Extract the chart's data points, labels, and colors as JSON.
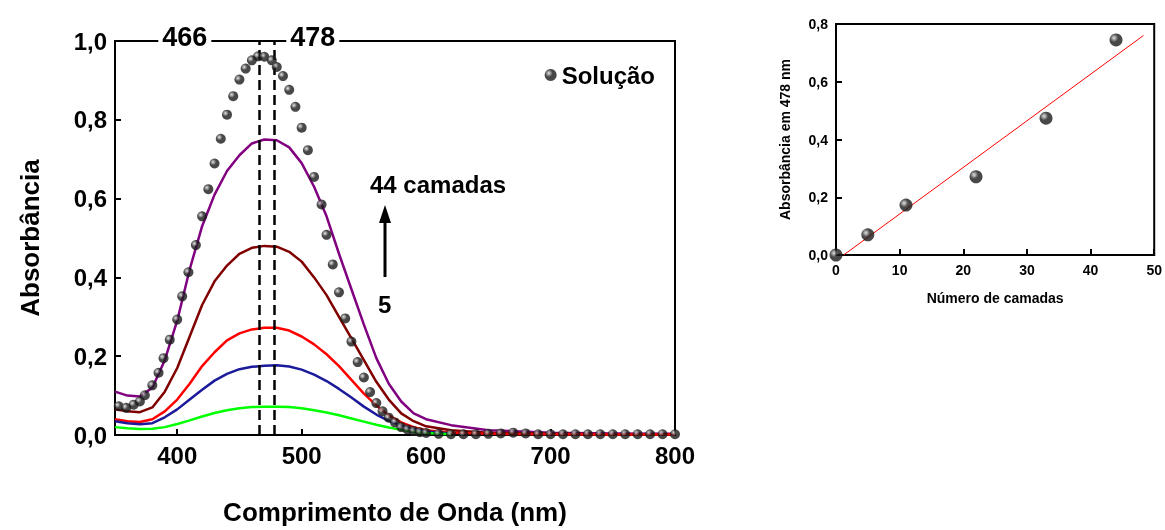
{
  "chart_data": [
    {
      "type": "line",
      "xlabel": "Comprimento de Onda (nm)",
      "ylabel": "Absorbância",
      "x": [
        350,
        360,
        370,
        380,
        390,
        400,
        410,
        420,
        430,
        440,
        450,
        460,
        470,
        480,
        490,
        500,
        510,
        520,
        530,
        540,
        550,
        560,
        570,
        580,
        590,
        600,
        620,
        650,
        700,
        750,
        800
      ],
      "series": [
        {
          "name": "Solução",
          "type": "scatter",
          "marker": "circle",
          "color": "#1a1a1a",
          "x": [
            353,
            359,
            365,
            370,
            374,
            380,
            385,
            389,
            394,
            400,
            404,
            409,
            415,
            420,
            425,
            430,
            435,
            440,
            445,
            450,
            455,
            460,
            465,
            470,
            476,
            480,
            485,
            490,
            495,
            500,
            505,
            510,
            516,
            520,
            525,
            530,
            535,
            540,
            545,
            550,
            555,
            560,
            565,
            570,
            575,
            580,
            585,
            590,
            595,
            600,
            610,
            620,
            630,
            640,
            650,
            660,
            670,
            680,
            690,
            700,
            710,
            720,
            730,
            740,
            750,
            760,
            770,
            780,
            790,
            800
          ],
          "values": [
            0.073,
            0.069,
            0.077,
            0.085,
            0.101,
            0.126,
            0.158,
            0.195,
            0.242,
            0.293,
            0.352,
            0.413,
            0.482,
            0.555,
            0.624,
            0.689,
            0.752,
            0.813,
            0.86,
            0.902,
            0.93,
            0.951,
            0.961,
            0.96,
            0.951,
            0.934,
            0.911,
            0.876,
            0.833,
            0.78,
            0.723,
            0.655,
            0.585,
            0.508,
            0.433,
            0.362,
            0.296,
            0.237,
            0.185,
            0.146,
            0.109,
            0.081,
            0.06,
            0.044,
            0.032,
            0.02,
            0.014,
            0.01,
            0.007,
            0.005,
            0.003,
            0.002,
            0.002,
            0.002,
            0.003,
            0.004,
            0.006,
            0.004,
            0.002,
            0.002,
            0.002,
            0.002,
            0.002,
            0.002,
            0.002,
            0.002,
            0.002,
            0.002,
            0.002,
            0.002
          ]
        },
        {
          "color": "#800080",
          "values": [
            0.11,
            0.1,
            0.098,
            0.12,
            0.19,
            0.29,
            0.42,
            0.53,
            0.61,
            0.67,
            0.71,
            0.74,
            0.75,
            0.748,
            0.73,
            0.69,
            0.63,
            0.555,
            0.46,
            0.37,
            0.28,
            0.195,
            0.13,
            0.085,
            0.055,
            0.04,
            0.025,
            0.012,
            0.006,
            0.004,
            0.003
          ]
        },
        {
          "color": "#800000",
          "values": [
            0.065,
            0.06,
            0.058,
            0.07,
            0.11,
            0.17,
            0.25,
            0.33,
            0.39,
            0.43,
            0.46,
            0.475,
            0.48,
            0.478,
            0.465,
            0.44,
            0.4,
            0.355,
            0.3,
            0.245,
            0.19,
            0.135,
            0.09,
            0.055,
            0.035,
            0.022,
            0.012,
            0.006,
            0.003,
            0.002,
            0.002
          ]
        },
        {
          "color": "#ff0000",
          "values": [
            0.04,
            0.035,
            0.033,
            0.04,
            0.06,
            0.09,
            0.13,
            0.175,
            0.21,
            0.24,
            0.258,
            0.268,
            0.272,
            0.272,
            0.265,
            0.25,
            0.23,
            0.205,
            0.175,
            0.14,
            0.105,
            0.075,
            0.05,
            0.032,
            0.02,
            0.012,
            0.006,
            0.003,
            0.002,
            0.001,
            0.001
          ]
        },
        {
          "color": "#1a1a9a",
          "values": [
            0.035,
            0.03,
            0.027,
            0.03,
            0.045,
            0.065,
            0.09,
            0.115,
            0.138,
            0.155,
            0.167,
            0.173,
            0.176,
            0.177,
            0.174,
            0.166,
            0.153,
            0.137,
            0.117,
            0.095,
            0.072,
            0.052,
            0.036,
            0.024,
            0.015,
            0.009,
            0.004,
            null,
            null,
            null,
            null
          ]
        },
        {
          "color": "#00ff00",
          "values": [
            0.02,
            0.017,
            0.015,
            0.016,
            0.02,
            0.028,
            0.037,
            0.047,
            0.056,
            0.063,
            0.068,
            0.071,
            0.072,
            0.072,
            0.071,
            0.068,
            0.063,
            0.057,
            0.05,
            0.042,
            0.034,
            0.026,
            0.019,
            0.013,
            0.008,
            0.005,
            0.002,
            null,
            null,
            null,
            null
          ]
        }
      ],
      "xlim": [
        350,
        800
      ],
      "xticks": [
        400,
        500,
        600,
        700,
        800
      ],
      "ylim": [
        0,
        1
      ],
      "yticks": [
        {
          "value": 0,
          "label": "0,0"
        },
        {
          "value": 0.2,
          "label": "0,2"
        },
        {
          "value": 0.4,
          "label": "0,4"
        },
        {
          "value": 0.6,
          "label": "0,6"
        },
        {
          "value": 0.8,
          "label": "0,8"
        },
        {
          "value": 1,
          "label": "1,0"
        }
      ],
      "ref_lines": [
        {
          "axis": "x",
          "value": 466,
          "label": "466",
          "color": "#000000",
          "line_style": "dashed"
        },
        {
          "axis": "x",
          "value": 478,
          "label": "478",
          "color": "#000000",
          "line_style": "dashed"
        }
      ],
      "annotations": [
        "44 camadas",
        "5"
      ],
      "legend": "top right",
      "grid": false
    },
    {
      "type": "scatter",
      "xlabel": "Número de camadas",
      "ylabel": "Absorbância em 478 nm",
      "x": [
        0,
        5,
        11,
        22,
        33,
        44
      ],
      "series": [
        {
          "color": "#1a1a1a",
          "marker": "circle",
          "values": [
            0,
            0.07,
            0.173,
            0.271,
            0.474,
            0.745
          ]
        },
        {
          "type": "line",
          "color": "#ff0000",
          "x": [
            1.2,
            48.3
          ],
          "values": [
            0,
            0.76
          ]
        }
      ],
      "xlim": [
        0,
        50
      ],
      "xticks": [
        0,
        10,
        20,
        30,
        40,
        50
      ],
      "ylim": [
        0,
        0.8
      ],
      "yticks": [
        {
          "value": 0,
          "label": "0,0"
        },
        {
          "value": 0.2,
          "label": "0,2"
        },
        {
          "value": 0.4,
          "label": "0,4"
        },
        {
          "value": 0.6,
          "label": "0,6"
        },
        {
          "value": 0.8,
          "label": "0,8"
        }
      ],
      "grid": false,
      "legend": false
    }
  ]
}
